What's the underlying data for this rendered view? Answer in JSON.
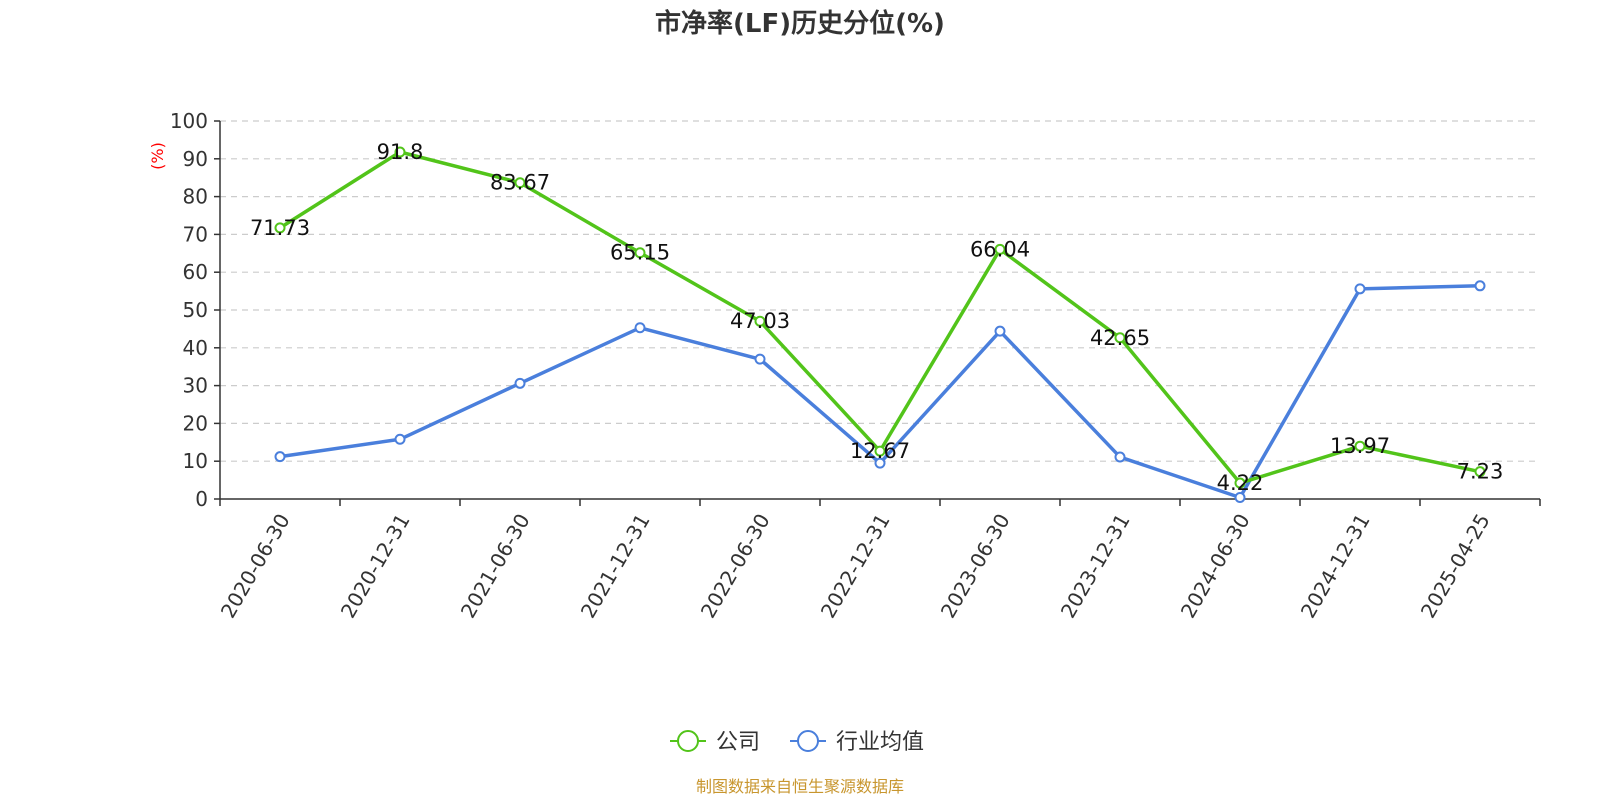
{
  "chart_data": {
    "type": "line",
    "title": "市净率(LF)历史分位(%)",
    "ylabel": "(%)",
    "xlabel": "",
    "ylim": [
      0,
      100
    ],
    "yticks": [
      0,
      10,
      20,
      30,
      40,
      50,
      60,
      70,
      80,
      90,
      100
    ],
    "grid": true,
    "legend_position": "bottom-center",
    "categories": [
      "2020-06-30",
      "2020-12-31",
      "2021-06-30",
      "2021-12-31",
      "2022-06-30",
      "2022-12-31",
      "2023-06-30",
      "2023-12-31",
      "2024-06-30",
      "2024-12-31",
      "2025-04-25"
    ],
    "series": [
      {
        "name": "公司",
        "color": "#52c41a",
        "values": [
          71.73,
          91.8,
          83.67,
          65.15,
          47.03,
          12.67,
          66.04,
          42.65,
          4.22,
          13.97,
          7.23
        ],
        "labels": [
          "71.73",
          "91.8",
          "83.67",
          "65.15",
          "47.03",
          "12.67",
          "66.04",
          "42.65",
          "4.22",
          "13.97",
          "7.23"
        ]
      },
      {
        "name": "行业均值",
        "color": "#4a7fdc",
        "values": [
          11.2,
          15.8,
          30.6,
          45.3,
          37.0,
          9.5,
          44.4,
          11.1,
          0.4,
          55.6,
          56.4
        ]
      }
    ]
  },
  "source_text": "制图数据来自恒生聚源数据库"
}
